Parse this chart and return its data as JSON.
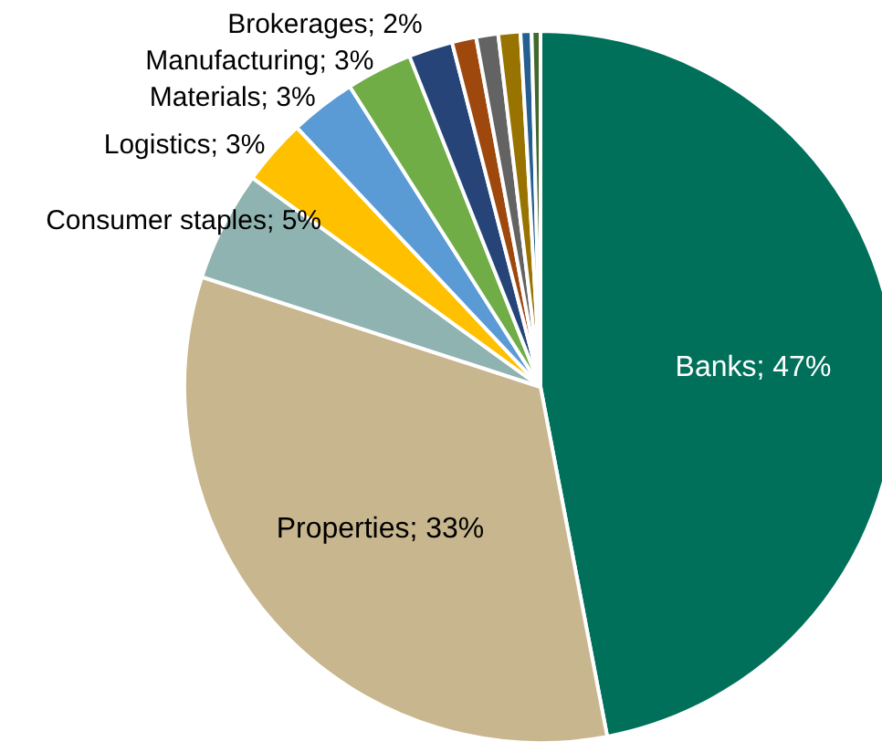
{
  "chart_data": {
    "type": "pie",
    "categories": [
      "Banks",
      "Properties",
      "Consumer staples",
      "Logistics",
      "Materials",
      "Manufacturing",
      "Brokerages",
      null,
      null,
      null,
      null,
      null
    ],
    "values": [
      47,
      33,
      5,
      3,
      3,
      3,
      2,
      1.1,
      1,
      1,
      0.5,
      0.4
    ],
    "value_labels": [
      "47%",
      "33%",
      "5%",
      "3%",
      "3%",
      "3%",
      "2%",
      null,
      null,
      null,
      null,
      null
    ],
    "colors": [
      "#00705a",
      "#c8b68e",
      "#8fb3b0",
      "#ffc000",
      "#5b9bd5",
      "#70ad47",
      "#264478",
      "#9e480e",
      "#636363",
      "#997300",
      "#255e91",
      "#43682b"
    ]
  }
}
